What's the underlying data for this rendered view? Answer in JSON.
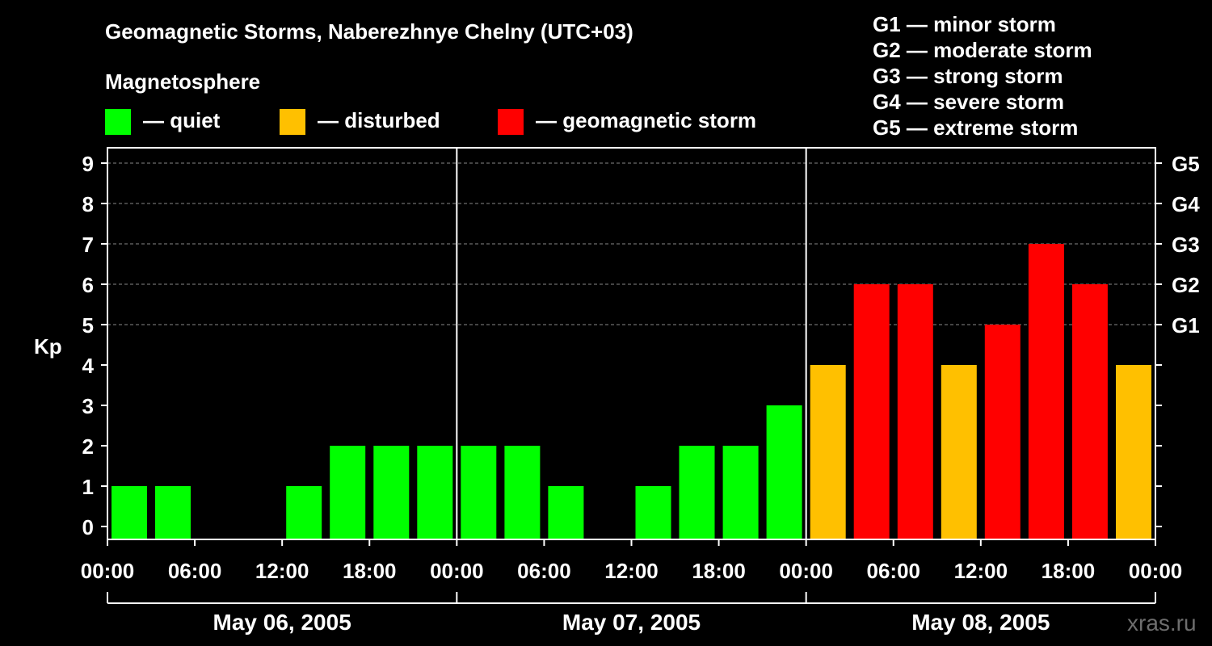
{
  "title": "Geomagnetic Storms, Naberezhnye Chelny (UTC+03)",
  "legend": {
    "heading": "Magnetosphere",
    "items": [
      {
        "label": "— quiet",
        "color": "#00ff00"
      },
      {
        "label": "— disturbed",
        "color": "#ffc000"
      },
      {
        "label": "— geomagnetic storm",
        "color": "#ff0000"
      }
    ]
  },
  "storm_scale": [
    "G1 — minor storm",
    "G2 — moderate storm",
    "G3 — strong storm",
    "G4 — severe storm",
    "G5 — extreme storm"
  ],
  "watermark": "xras.ru",
  "chart_data": {
    "type": "bar",
    "title": "Geomagnetic Storms, Naberezhnye Chelny (UTC+03)",
    "ylabel": "Kp",
    "ylim": [
      0,
      9
    ],
    "yticks": [
      "0",
      "1",
      "2",
      "3",
      "4",
      "5",
      "6",
      "7",
      "8",
      "9"
    ],
    "right_ticks": [
      {
        "kp": 5,
        "label": "G1"
      },
      {
        "kp": 6,
        "label": "G2"
      },
      {
        "kp": 7,
        "label": "G3"
      },
      {
        "kp": 8,
        "label": "G4"
      },
      {
        "kp": 9,
        "label": "G5"
      }
    ],
    "xticks": [
      "00:00",
      "06:00",
      "12:00",
      "18:00",
      "00:00",
      "06:00",
      "12:00",
      "18:00",
      "00:00",
      "06:00",
      "12:00",
      "18:00",
      "00:00"
    ],
    "days": [
      "May 06, 2005",
      "May 07, 2005",
      "May 08, 2005"
    ],
    "interval_hours": 3,
    "colors": {
      "quiet": "#00ff00",
      "disturbed": "#ffc000",
      "storm": "#ff0000"
    },
    "values": [
      1,
      1,
      0,
      0,
      1,
      2,
      2,
      2,
      2,
      2,
      1,
      0,
      1,
      2,
      2,
      3,
      4,
      6,
      6,
      4,
      5,
      7,
      6,
      4
    ]
  }
}
